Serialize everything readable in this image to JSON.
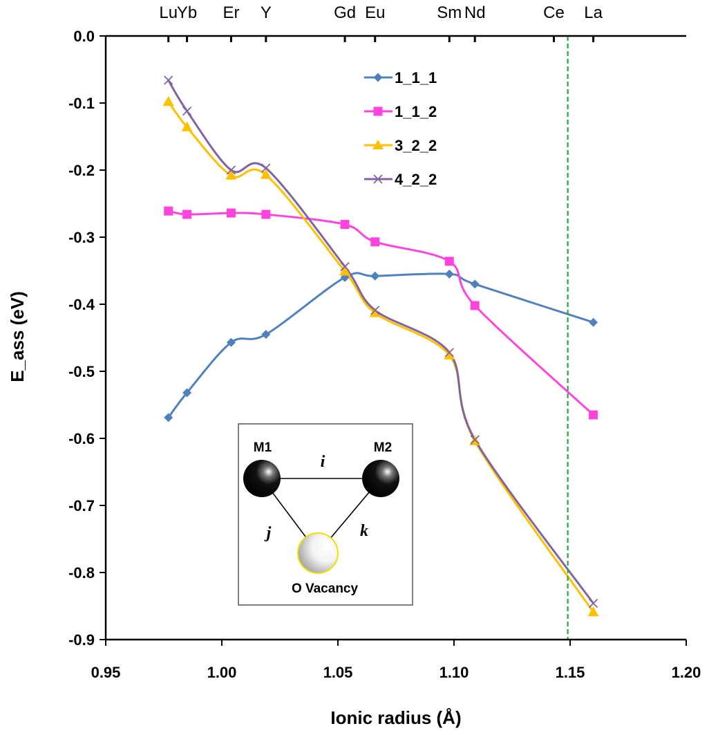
{
  "chart_data": {
    "type": "line",
    "xlabel": "Ionic radius (Å)",
    "ylabel": "E_ass (eV)",
    "xlim": [
      0.95,
      1.2
    ],
    "ylim": [
      -0.9,
      0.0
    ],
    "x_ticks": [
      "0.95",
      "1.00",
      "1.05",
      "1.10",
      "1.15",
      "1.20"
    ],
    "y_ticks": [
      "0.0",
      "-0.1",
      "-0.2",
      "-0.3",
      "-0.4",
      "-0.5",
      "-0.6",
      "-0.7",
      "-0.8",
      "-0.9"
    ],
    "x_tick_values": [
      0.95,
      1.0,
      1.05,
      1.1,
      1.15,
      1.2
    ],
    "y_tick_values": [
      0.0,
      -0.1,
      -0.2,
      -0.3,
      -0.4,
      -0.5,
      -0.6,
      -0.7,
      -0.8,
      -0.9
    ],
    "top_axis": {
      "labels": [
        "Lu",
        "Yb",
        "Er",
        "Y",
        "Gd",
        "Eu",
        "Sm",
        "Nd",
        "Ce",
        "La"
      ],
      "values": [
        0.977,
        0.985,
        1.004,
        1.019,
        1.053,
        1.066,
        1.098,
        1.109,
        1.143,
        1.16
      ]
    },
    "reference_line": {
      "x": 1.149,
      "color": "#22aa44"
    },
    "legend_position": "top-center",
    "grid": false,
    "series": [
      {
        "name": "1_1_1",
        "color": "#4f81bd",
        "marker": "diamond",
        "x": [
          0.977,
          0.985,
          1.004,
          1.019,
          1.053,
          1.066,
          1.098,
          1.109,
          1.16
        ],
        "y": [
          -0.569,
          -0.532,
          -0.457,
          -0.445,
          -0.36,
          -0.358,
          -0.355,
          -0.37,
          -0.427
        ]
      },
      {
        "name": "1_1_2",
        "color": "#ff44dd",
        "marker": "square",
        "x": [
          0.977,
          0.985,
          1.004,
          1.019,
          1.053,
          1.066,
          1.098,
          1.109,
          1.16
        ],
        "y": [
          -0.261,
          -0.266,
          -0.264,
          -0.266,
          -0.281,
          -0.307,
          -0.336,
          -0.402,
          -0.565
        ]
      },
      {
        "name": "3_2_2",
        "color": "#ffc000",
        "marker": "triangle",
        "x": [
          0.977,
          0.985,
          1.004,
          1.019,
          1.053,
          1.066,
          1.098,
          1.109,
          1.16
        ],
        "y": [
          -0.098,
          -0.136,
          -0.208,
          -0.207,
          -0.351,
          -0.413,
          -0.476,
          -0.604,
          -0.859
        ]
      },
      {
        "name": "4_2_2",
        "color": "#8064a2",
        "marker": "x",
        "x": [
          0.977,
          0.985,
          1.004,
          1.019,
          1.053,
          1.066,
          1.098,
          1.109,
          1.16
        ],
        "y": [
          -0.066,
          -0.112,
          -0.2,
          -0.197,
          -0.344,
          -0.409,
          -0.472,
          -0.602,
          -0.846
        ]
      }
    ],
    "inset": {
      "m1_label": "M1",
      "m2_label": "M2",
      "i_label": "i",
      "j_label": "j",
      "k_label": "k",
      "vacancy_label": "O Vacancy"
    }
  }
}
